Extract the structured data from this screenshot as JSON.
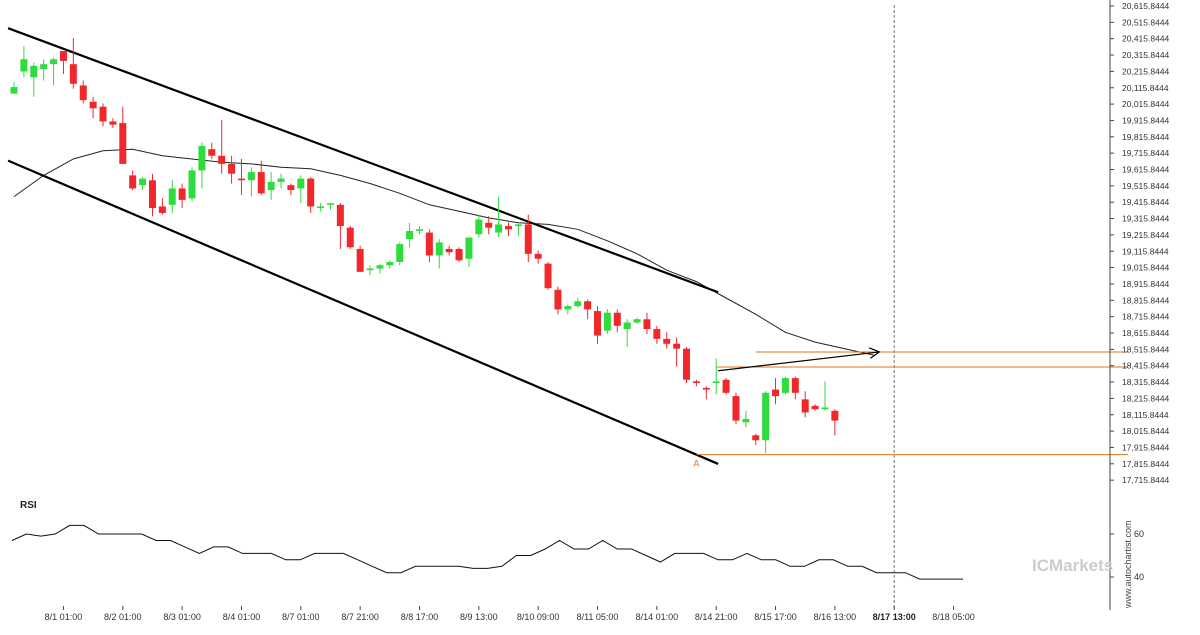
{
  "chart_data": {
    "type": "candlestick",
    "y_axis": {
      "range": [
        17665.8444,
        20665.8444
      ],
      "ticks": [
        "20,615.8444",
        "20,515.8444",
        "20,415.8444",
        "20,315.8444",
        "20,215.8444",
        "20,115.8444",
        "20,015.8444",
        "19,915.8444",
        "19,815.8444",
        "19,715.8444",
        "19,615.8444",
        "19,515.8444",
        "19,415.8444",
        "19,315.8444",
        "19,215.8444",
        "19,115.8444",
        "19,015.8444",
        "18,915.8444",
        "18,815.8444",
        "18,715.8444",
        "18,615.8444",
        "18,515.8444",
        "18,415.8444",
        "18,315.8444",
        "18,215.8444",
        "18,115.8444",
        "18,015.8444",
        "17,915.8444",
        "17,815.8444",
        "17,715.8444"
      ]
    },
    "x_axis": {
      "labels": [
        {
          "text": "8/1 01:00",
          "bar": 5
        },
        {
          "text": "8/2 01:00",
          "bar": 11
        },
        {
          "text": "8/3 01:00",
          "bar": 17
        },
        {
          "text": "8/4 01:00",
          "bar": 23
        },
        {
          "text": "8/7 01:00",
          "bar": 29
        },
        {
          "text": "8/7 21:00",
          "bar": 35
        },
        {
          "text": "8/8 17:00",
          "bar": 41
        },
        {
          "text": "8/9 13:00",
          "bar": 47
        },
        {
          "text": "8/10 09:00",
          "bar": 53
        },
        {
          "text": "8/11 05:00",
          "bar": 59
        },
        {
          "text": "8/14 01:00",
          "bar": 65
        },
        {
          "text": "8/14 21:00",
          "bar": 71
        },
        {
          "text": "8/15 17:00",
          "bar": 77
        },
        {
          "text": "8/16 13:00",
          "bar": 83
        },
        {
          "text": "8/17 13:00",
          "bar": 89,
          "bold": true
        },
        {
          "text": "8/18 05:00",
          "bar": 95
        }
      ]
    },
    "current_bar": 89,
    "candles": [
      {
        "o": 20080,
        "h": 20150,
        "l": 20080,
        "c": 20120
      },
      {
        "o": 20215,
        "h": 20370,
        "l": 20180,
        "c": 20290
      },
      {
        "o": 20180,
        "h": 20270,
        "l": 20060,
        "c": 20250
      },
      {
        "o": 20230,
        "h": 20290,
        "l": 20160,
        "c": 20260
      },
      {
        "o": 20260,
        "h": 20300,
        "l": 20130,
        "c": 20290
      },
      {
        "o": 20340,
        "h": 20340,
        "l": 20200,
        "c": 20280
      },
      {
        "o": 20260,
        "h": 20420,
        "l": 20110,
        "c": 20140
      },
      {
        "o": 20130,
        "h": 20160,
        "l": 20020,
        "c": 20040
      },
      {
        "o": 20030,
        "h": 20060,
        "l": 19930,
        "c": 19990
      },
      {
        "o": 20000,
        "h": 20020,
        "l": 19880,
        "c": 19910
      },
      {
        "o": 19910,
        "h": 19930,
        "l": 19870,
        "c": 19890
      },
      {
        "o": 19900,
        "h": 20000,
        "l": 19650,
        "c": 19650
      },
      {
        "o": 19580,
        "h": 19610,
        "l": 19490,
        "c": 19500
      },
      {
        "o": 19520,
        "h": 19570,
        "l": 19490,
        "c": 19560
      },
      {
        "o": 19550,
        "h": 19590,
        "l": 19330,
        "c": 19380
      },
      {
        "o": 19390,
        "h": 19440,
        "l": 19340,
        "c": 19350
      },
      {
        "o": 19400,
        "h": 19550,
        "l": 19350,
        "c": 19500
      },
      {
        "o": 19500,
        "h": 19530,
        "l": 19380,
        "c": 19430
      },
      {
        "o": 19440,
        "h": 19630,
        "l": 19420,
        "c": 19610
      },
      {
        "o": 19610,
        "h": 19780,
        "l": 19500,
        "c": 19760
      },
      {
        "o": 19740,
        "h": 19780,
        "l": 19680,
        "c": 19700
      },
      {
        "o": 19700,
        "h": 19920,
        "l": 19590,
        "c": 19650
      },
      {
        "o": 19650,
        "h": 19700,
        "l": 19530,
        "c": 19590
      },
      {
        "o": 19560,
        "h": 19680,
        "l": 19460,
        "c": 19550
      },
      {
        "o": 19550,
        "h": 19630,
        "l": 19450,
        "c": 19600
      },
      {
        "o": 19600,
        "h": 19670,
        "l": 19460,
        "c": 19470
      },
      {
        "o": 19490,
        "h": 19600,
        "l": 19430,
        "c": 19540
      },
      {
        "o": 19540,
        "h": 19590,
        "l": 19500,
        "c": 19560
      },
      {
        "o": 19520,
        "h": 19530,
        "l": 19460,
        "c": 19490
      },
      {
        "o": 19500,
        "h": 19580,
        "l": 19410,
        "c": 19560
      },
      {
        "o": 19560,
        "h": 19570,
        "l": 19350,
        "c": 19390
      },
      {
        "o": 19380,
        "h": 19410,
        "l": 19360,
        "c": 19390
      },
      {
        "o": 19400,
        "h": 19410,
        "l": 19370,
        "c": 19410
      },
      {
        "o": 19400,
        "h": 19410,
        "l": 19130,
        "c": 19270
      },
      {
        "o": 19260,
        "h": 19270,
        "l": 19130,
        "c": 19140
      },
      {
        "o": 19130,
        "h": 19150,
        "l": 18990,
        "c": 18990
      },
      {
        "o": 19000,
        "h": 19030,
        "l": 18970,
        "c": 19010
      },
      {
        "o": 19010,
        "h": 19040,
        "l": 18980,
        "c": 19030
      },
      {
        "o": 19030,
        "h": 19060,
        "l": 19010,
        "c": 19050
      },
      {
        "o": 19050,
        "h": 19170,
        "l": 19030,
        "c": 19160
      },
      {
        "o": 19190,
        "h": 19290,
        "l": 19140,
        "c": 19240
      },
      {
        "o": 19240,
        "h": 19270,
        "l": 19220,
        "c": 19250
      },
      {
        "o": 19230,
        "h": 19250,
        "l": 19050,
        "c": 19090
      },
      {
        "o": 19090,
        "h": 19190,
        "l": 19010,
        "c": 19170
      },
      {
        "o": 19130,
        "h": 19150,
        "l": 19090,
        "c": 19110
      },
      {
        "o": 19130,
        "h": 19140,
        "l": 19050,
        "c": 19060
      },
      {
        "o": 19070,
        "h": 19180,
        "l": 19020,
        "c": 19200
      },
      {
        "o": 19220,
        "h": 19340,
        "l": 19200,
        "c": 19310
      },
      {
        "o": 19290,
        "h": 19330,
        "l": 19220,
        "c": 19260
      },
      {
        "o": 19230,
        "h": 19450,
        "l": 19200,
        "c": 19280
      },
      {
        "o": 19270,
        "h": 19290,
        "l": 19210,
        "c": 19250
      },
      {
        "o": 19270,
        "h": 19290,
        "l": 19210,
        "c": 19280
      },
      {
        "o": 19280,
        "h": 19340,
        "l": 19050,
        "c": 19100
      },
      {
        "o": 19100,
        "h": 19120,
        "l": 19040,
        "c": 19070
      },
      {
        "o": 19040,
        "h": 19050,
        "l": 18880,
        "c": 18890
      },
      {
        "o": 18880,
        "h": 18900,
        "l": 18730,
        "c": 18760
      },
      {
        "o": 18760,
        "h": 18790,
        "l": 18730,
        "c": 18780
      },
      {
        "o": 18780,
        "h": 18830,
        "l": 18770,
        "c": 18810
      },
      {
        "o": 18810,
        "h": 18820,
        "l": 18700,
        "c": 18760
      },
      {
        "o": 18750,
        "h": 18780,
        "l": 18550,
        "c": 18600
      },
      {
        "o": 18630,
        "h": 18760,
        "l": 18610,
        "c": 18740
      },
      {
        "o": 18740,
        "h": 18760,
        "l": 18620,
        "c": 18660
      },
      {
        "o": 18640,
        "h": 18700,
        "l": 18530,
        "c": 18680
      },
      {
        "o": 18680,
        "h": 18710,
        "l": 18670,
        "c": 18700
      },
      {
        "o": 18700,
        "h": 18740,
        "l": 18610,
        "c": 18640
      },
      {
        "o": 18640,
        "h": 18660,
        "l": 18550,
        "c": 18580
      },
      {
        "o": 18580,
        "h": 18620,
        "l": 18520,
        "c": 18550
      },
      {
        "o": 18550,
        "h": 18590,
        "l": 18410,
        "c": 18520
      },
      {
        "o": 18520,
        "h": 18530,
        "l": 18310,
        "c": 18330
      },
      {
        "o": 18320,
        "h": 18330,
        "l": 18290,
        "c": 18310
      },
      {
        "o": 18280,
        "h": 18290,
        "l": 18210,
        "c": 18270
      },
      {
        "o": 18310,
        "h": 18460,
        "l": 18240,
        "c": 18320
      },
      {
        "o": 18330,
        "h": 18340,
        "l": 18240,
        "c": 18250
      },
      {
        "o": 18230,
        "h": 18250,
        "l": 18060,
        "c": 18080
      },
      {
        "o": 18070,
        "h": 18140,
        "l": 18040,
        "c": 18090
      },
      {
        "o": 17990,
        "h": 18000,
        "l": 17930,
        "c": 17960
      },
      {
        "o": 17960,
        "h": 18260,
        "l": 17880,
        "c": 18250
      },
      {
        "o": 18270,
        "h": 18340,
        "l": 18180,
        "c": 18230
      },
      {
        "o": 18250,
        "h": 18350,
        "l": 18240,
        "c": 18340
      },
      {
        "o": 18340,
        "h": 18350,
        "l": 18210,
        "c": 18250
      },
      {
        "o": 18210,
        "h": 18260,
        "l": 18100,
        "c": 18130
      },
      {
        "o": 18170,
        "h": 18180,
        "l": 18140,
        "c": 18150
      },
      {
        "o": 18150,
        "h": 18320,
        "l": 18140,
        "c": 18160
      },
      {
        "o": 18140,
        "h": 18150,
        "l": 17990,
        "c": 18080
      }
    ],
    "ma_line": [
      [
        0,
        19450
      ],
      [
        3,
        19580
      ],
      [
        6,
        19680
      ],
      [
        9,
        19730
      ],
      [
        12,
        19740
      ],
      [
        15,
        19700
      ],
      [
        18,
        19680
      ],
      [
        21,
        19660
      ],
      [
        24,
        19650
      ],
      [
        27,
        19630
      ],
      [
        30,
        19620
      ],
      [
        33,
        19580
      ],
      [
        36,
        19530
      ],
      [
        39,
        19470
      ],
      [
        42,
        19400
      ],
      [
        45,
        19360
      ],
      [
        48,
        19320
      ],
      [
        51,
        19290
      ],
      [
        54,
        19280
      ],
      [
        57,
        19250
      ],
      [
        60,
        19180
      ],
      [
        63,
        19100
      ],
      [
        66,
        19000
      ],
      [
        69,
        18930
      ],
      [
        72,
        18830
      ],
      [
        75,
        18730
      ],
      [
        78,
        18620
      ],
      [
        81,
        18560
      ],
      [
        84,
        18520
      ],
      [
        87,
        18480
      ]
    ],
    "channel_upper": [
      [
        -0.6,
        20480
      ],
      [
        71.2,
        18865
      ]
    ],
    "channel_lower": [
      [
        -0.6,
        19670
      ],
      [
        71.2,
        17815
      ]
    ],
    "target_arrow": [
      [
        71.2,
        18385
      ],
      [
        87.5,
        18500
      ]
    ],
    "resistance_level": {
      "value": 18500,
      "from_bar": 75
    },
    "price_level": {
      "value": 18408,
      "from_bar": 71
    },
    "support_level": {
      "value": 17872,
      "from_bar": 69
    },
    "point_label": "A",
    "point_label_bar": 69,
    "colors": {
      "up": "#2fdc3e",
      "down": "#f0282c",
      "level": "#e0751a",
      "line": "#000000",
      "ma": "#222222"
    }
  },
  "rsi": {
    "title": "RSI",
    "ticks": [
      "60",
      "40"
    ],
    "range": [
      30,
      75
    ],
    "values": [
      57,
      60,
      59,
      60,
      64,
      64,
      60,
      60,
      60,
      60,
      57,
      57,
      54,
      51,
      54,
      54,
      51,
      51,
      51,
      48,
      48,
      51,
      51,
      51,
      48,
      45,
      42,
      42,
      45,
      45,
      45,
      45,
      44,
      44,
      45,
      50,
      50,
      53,
      57,
      53,
      53,
      57,
      53,
      53,
      50,
      47,
      51,
      51,
      51,
      48,
      48,
      51,
      48,
      48,
      45,
      45,
      48,
      48,
      45,
      45,
      42,
      42,
      42,
      39,
      39,
      39,
      39
    ]
  },
  "watermark": "www.autochartist.com",
  "brand": "ICMarkets"
}
